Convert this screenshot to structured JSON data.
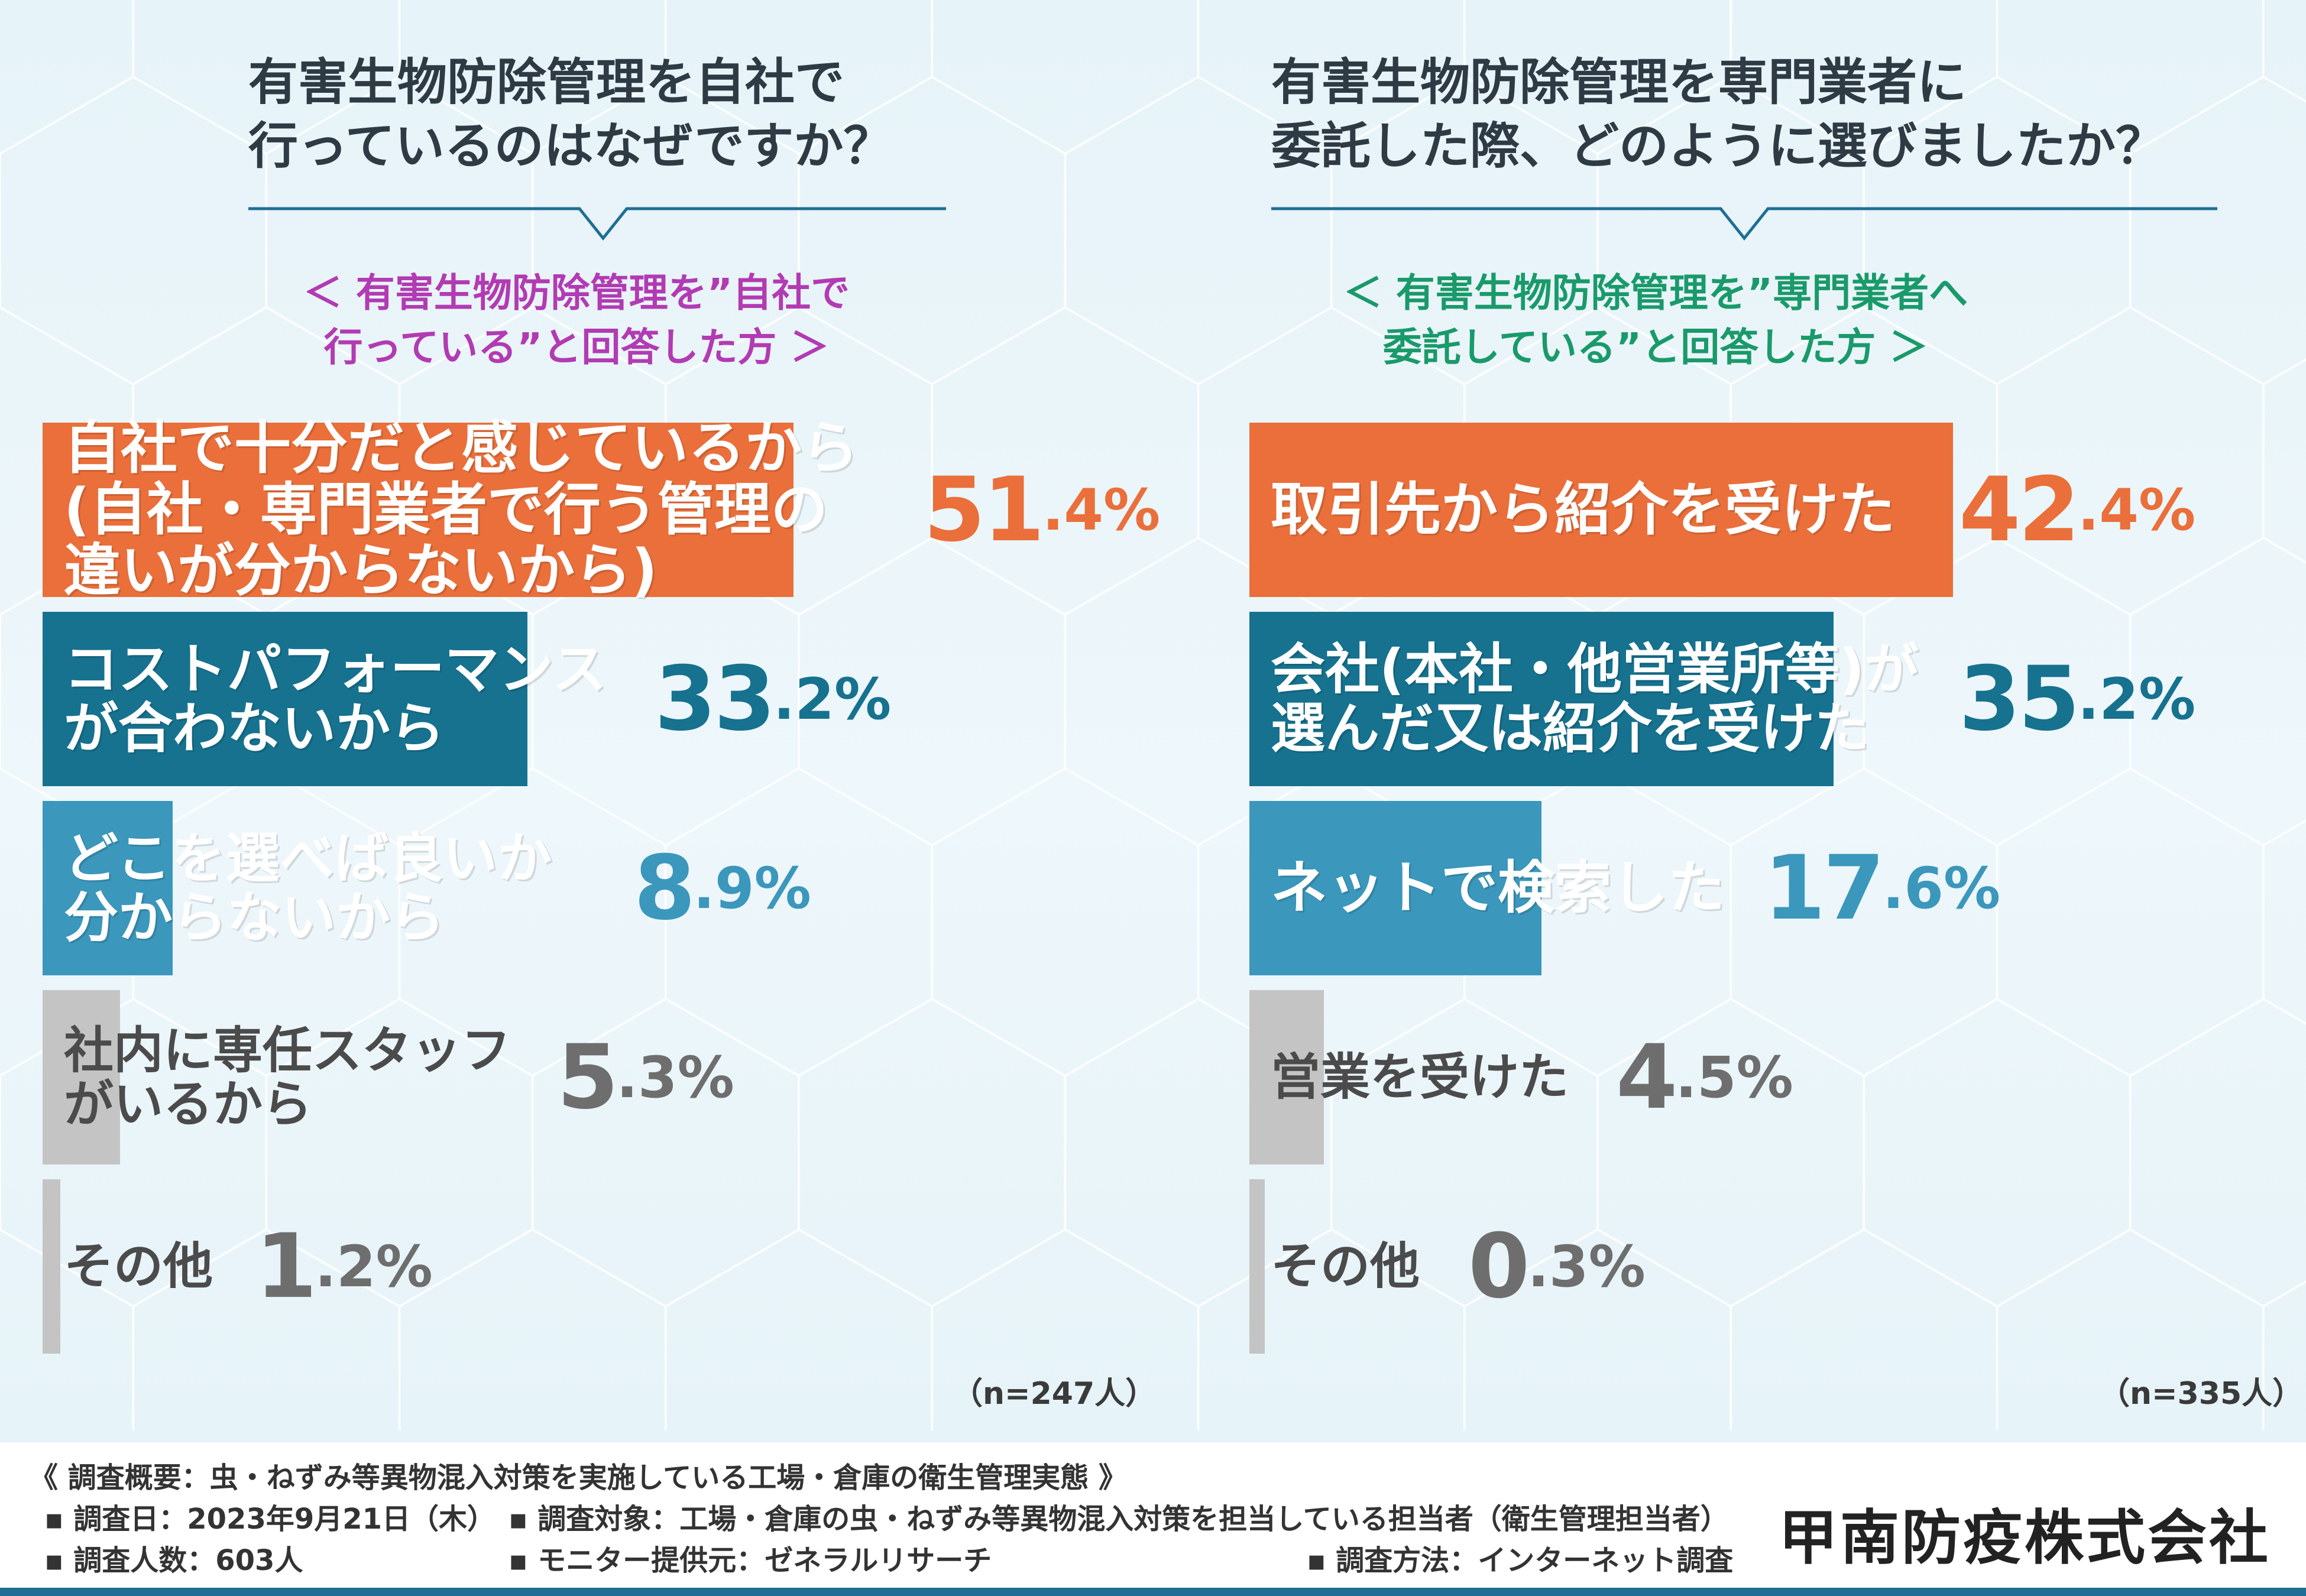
{
  "colors": {
    "orange": "#ea6f3a",
    "teal_dark": "#16728f",
    "teal_mid": "#3b97bb",
    "gray": "#c4c4c4",
    "pct_gray": "#6e6e6e"
  },
  "left": {
    "question_lines": [
      "有害生物防除管理を自社で",
      "行っているのはなぜですか？"
    ],
    "subtitle_lines": [
      "＜ 有害生物防除管理を”自社で",
      "行っている”と回答した方 ＞"
    ],
    "n_label": "（n=247人）"
  },
  "right": {
    "question_lines": [
      "有害生物防除管理を専門業者に",
      "委託した際、どのように選びましたか？"
    ],
    "subtitle_lines": [
      "＜ 有害生物防除管理を”専門業者へ",
      "委託している”と回答した方 ＞"
    ],
    "n_label": "（n=335人）"
  },
  "chart_data": [
    {
      "type": "bar",
      "orientation": "horizontal",
      "title": "有害生物防除管理を自社で行っているのはなぜですか？",
      "unit": "%",
      "bars": [
        {
          "label_lines": [
            "自社で十分だと感じているから",
            "(自社・専門業者で行う管理の",
            "違いが分からないから)"
          ],
          "value": 51.4,
          "big": "51",
          "small": ".4%",
          "color": "orange"
        },
        {
          "label_lines": [
            "コストパフォーマンス",
            "が合わないから"
          ],
          "value": 33.2,
          "big": "33",
          "small": ".2%",
          "color": "teal_dark"
        },
        {
          "label_lines": [
            "どこを選べば良いか",
            "分からないから"
          ],
          "value": 8.9,
          "big": "8",
          "small": ".9%",
          "color": "teal_mid"
        },
        {
          "label_lines": [
            "社内に専任スタッフ",
            "がいるから"
          ],
          "value": 5.3,
          "big": "5",
          "small": ".3%",
          "color": "gray"
        },
        {
          "label_lines": [
            "その他"
          ],
          "value": 1.2,
          "big": "1",
          "small": ".2%",
          "color": "gray"
        }
      ]
    },
    {
      "type": "bar",
      "orientation": "horizontal",
      "title": "有害生物防除管理を専門業者に委託した際、どのように選びましたか？",
      "unit": "%",
      "bars": [
        {
          "label_lines": [
            "取引先から紹介を受けた"
          ],
          "value": 42.4,
          "big": "42",
          "small": ".4%",
          "color": "orange"
        },
        {
          "label_lines": [
            "会社(本社・他営業所等)が",
            "選んだ又は紹介を受けた"
          ],
          "value": 35.2,
          "big": "35",
          "small": ".2%",
          "color": "teal_dark"
        },
        {
          "label_lines": [
            "ネットで検索した"
          ],
          "value": 17.6,
          "big": "17",
          "small": ".6%",
          "color": "teal_mid"
        },
        {
          "label_lines": [
            "営業を受けた"
          ],
          "value": 4.5,
          "big": "4",
          "small": ".5%",
          "color": "gray"
        },
        {
          "label_lines": [
            "その他"
          ],
          "value": 0.3,
          "big": "0",
          "small": ".3%",
          "color": "gray"
        }
      ]
    }
  ],
  "footer": {
    "summary": "《 調査概要：虫・ねずみ等異物混入対策を実施している工場・倉庫の衛生管理実態 》",
    "date": "▪ 調査日：2023年9月21日（木）",
    "target": "▪ 調査対象：工場・倉庫の虫・ねずみ等異物混入対策を担当している担当者（衛生管理担当者）",
    "count": "▪ 調査人数：603人",
    "provider": "▪ モニター提供元：ゼネラルリサーチ",
    "method": "▪ 調査方法：インターネット調査",
    "company": "甲南防疫株式会社"
  }
}
